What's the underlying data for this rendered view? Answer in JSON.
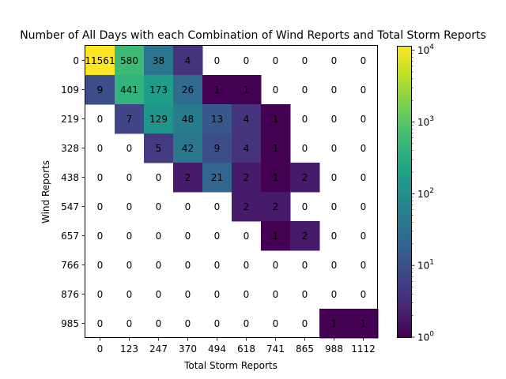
{
  "chart_data": {
    "type": "heatmap",
    "title": "Number of All Days with each Combination of Wind Reports and Total Storm Reports",
    "xlabel": "Total Storm Reports",
    "ylabel": "Wind Reports",
    "x_ticks": [
      "0",
      "123",
      "247",
      "370",
      "494",
      "618",
      "741",
      "865",
      "988",
      "1112"
    ],
    "y_ticks": [
      "0",
      "109",
      "219",
      "328",
      "438",
      "547",
      "657",
      "766",
      "876",
      "985"
    ],
    "values": [
      [
        11561,
        580,
        38,
        4,
        0,
        0,
        0,
        0,
        0,
        0
      ],
      [
        9,
        441,
        173,
        26,
        1,
        1,
        0,
        0,
        0,
        0
      ],
      [
        0,
        7,
        129,
        48,
        13,
        4,
        1,
        0,
        0,
        0
      ],
      [
        0,
        0,
        5,
        42,
        9,
        4,
        1,
        0,
        0,
        0
      ],
      [
        0,
        0,
        0,
        2,
        21,
        2,
        1,
        2,
        0,
        0
      ],
      [
        0,
        0,
        0,
        0,
        0,
        2,
        2,
        0,
        0,
        0
      ],
      [
        0,
        0,
        0,
        0,
        0,
        0,
        1,
        2,
        0,
        0
      ],
      [
        0,
        0,
        0,
        0,
        0,
        0,
        0,
        0,
        0,
        0
      ],
      [
        0,
        0,
        0,
        0,
        0,
        0,
        0,
        0,
        0,
        0
      ],
      [
        0,
        0,
        0,
        0,
        0,
        0,
        0,
        0,
        1,
        1
      ]
    ],
    "color_scale": "log",
    "colormap": "viridis",
    "colorbar": {
      "min": 1,
      "max": 11561,
      "tick_base": "10",
      "tick_exponents": [
        "0",
        "1",
        "2",
        "3",
        "4"
      ]
    },
    "zero_cells": "blank",
    "grid": false,
    "legend": "none"
  }
}
